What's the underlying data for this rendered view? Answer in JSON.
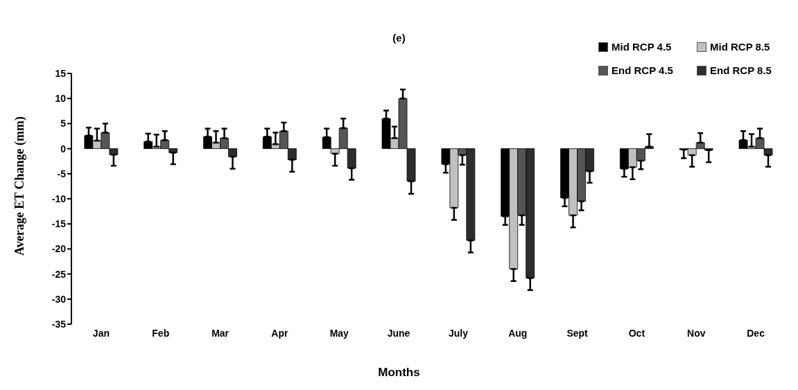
{
  "chart_data": {
    "type": "bar",
    "title": "(e)",
    "xlabel": "Months",
    "ylabel": "Average ET Change (mm)",
    "categories": [
      "Jan",
      "Feb",
      "Mar",
      "Apr",
      "May",
      "June",
      "July",
      "Aug",
      "Sept",
      "Oct",
      "Nov",
      "Dec"
    ],
    "ylim": [
      -35,
      15
    ],
    "yticks": [
      -35,
      -30,
      -25,
      -20,
      -15,
      -10,
      -5,
      0,
      5,
      10,
      15
    ],
    "grid": false,
    "legend": "top right",
    "series": [
      {
        "name": "Mid RCP 4.5",
        "color": "#000000",
        "values": [
          2.6,
          1.4,
          2.4,
          2.4,
          2.3,
          6.0,
          -3.1,
          -13.5,
          -9.8,
          -4.0,
          -0.2,
          1.7
        ],
        "errors": [
          [
            2.6,
            4.2
          ],
          [
            1.4,
            3.0
          ],
          [
            2.4,
            4.0
          ],
          [
            2.4,
            4.0
          ],
          [
            2.3,
            4.0
          ],
          [
            6.0,
            7.6
          ],
          [
            -4.8,
            -3.1
          ],
          [
            -15.2,
            -13.5
          ],
          [
            -11.5,
            -9.8
          ],
          [
            -5.6,
            -4.0
          ],
          [
            -1.9,
            -0.2
          ],
          [
            1.7,
            3.5
          ]
        ]
      },
      {
        "name": "Mid RCP 8.5",
        "color": "#c0c0c0",
        "values": [
          1.6,
          0.4,
          1.2,
          0.9,
          -1.0,
          2.1,
          -11.8,
          -24.0,
          -13.3,
          -3.7,
          -1.3,
          0.4
        ],
        "errors": [
          [
            1.6,
            4.0
          ],
          [
            0.4,
            2.8
          ],
          [
            1.2,
            3.5
          ],
          [
            0.9,
            3.2
          ],
          [
            -3.4,
            -1.0
          ],
          [
            2.1,
            4.4
          ],
          [
            -14.2,
            -11.8
          ],
          [
            -26.4,
            -24.0
          ],
          [
            -15.7,
            -13.3
          ],
          [
            -6.1,
            -3.7
          ],
          [
            -3.6,
            -1.3
          ],
          [
            0.4,
            2.9
          ]
        ]
      },
      {
        "name": "End RCP 4.5",
        "color": "#555555",
        "values": [
          3.2,
          1.7,
          2.1,
          3.5,
          4.1,
          10.0,
          -1.3,
          -13.3,
          -10.5,
          -2.4,
          1.2,
          2.1
        ],
        "errors": [
          [
            3.2,
            5.0
          ],
          [
            1.7,
            3.5
          ],
          [
            2.1,
            4.0
          ],
          [
            3.5,
            5.2
          ],
          [
            4.1,
            6.0
          ],
          [
            10.0,
            11.8
          ],
          [
            -3.2,
            -1.3
          ],
          [
            -15.2,
            -13.3
          ],
          [
            -12.3,
            -10.5
          ],
          [
            -4.1,
            -2.4
          ],
          [
            1.2,
            3.1
          ],
          [
            2.1,
            4.0
          ]
        ]
      },
      {
        "name": "End RCP 8.5",
        "color": "#2d2d2d",
        "values": [
          -1.2,
          -0.8,
          -1.6,
          -2.2,
          -3.9,
          -6.5,
          -18.3,
          -25.8,
          -4.5,
          0.4,
          -0.3,
          -1.3
        ],
        "errors": [
          [
            -3.4,
            -1.2
          ],
          [
            -3.1,
            -0.8
          ],
          [
            -4.0,
            -1.6
          ],
          [
            -4.6,
            -2.2
          ],
          [
            -6.2,
            -3.9
          ],
          [
            -9.0,
            -6.5
          ],
          [
            -20.7,
            -18.3
          ],
          [
            -28.2,
            -25.8
          ],
          [
            -6.8,
            -4.5
          ],
          [
            0.4,
            2.9
          ],
          [
            -2.7,
            -0.3
          ],
          [
            -3.6,
            -1.3
          ]
        ]
      }
    ]
  }
}
